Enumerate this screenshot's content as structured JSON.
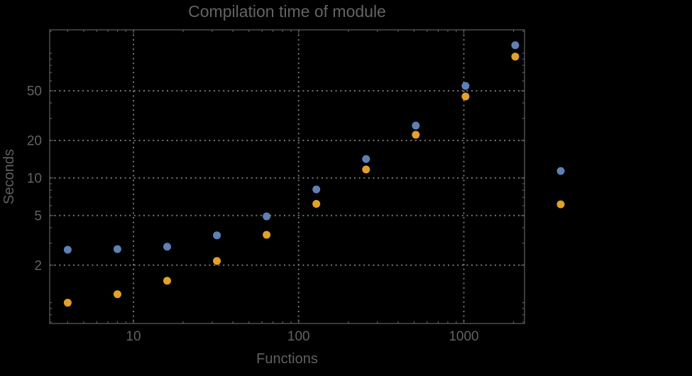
{
  "title": "Compilation time of module",
  "axes": {
    "x": {
      "label": "Functions"
    },
    "y": {
      "label": "Seconds"
    }
  },
  "chart_data": {
    "type": "scatter",
    "title": "Compilation time of module",
    "xlabel": "Functions",
    "ylabel": "Seconds",
    "xscale": "log",
    "yscale": "log",
    "xlim": [
      3.1,
      2310
    ],
    "ylim": [
      0.68,
      154
    ],
    "grid": "dotted gray lines at labeled major ticks, frame on all four sides with inward ticks",
    "legend_position": "right-outside, markers only (no visible label text)",
    "x": [
      4,
      8,
      16,
      32,
      64,
      128,
      256,
      512,
      1024,
      2048
    ],
    "series": [
      {
        "name": "blue-series",
        "color": "#5e81b5",
        "values": [
          2.66,
          2.69,
          2.81,
          3.47,
          4.92,
          8.1,
          14.2,
          26.3,
          54.7,
          116
        ]
      },
      {
        "name": "orange-series",
        "color": "#e3a02a",
        "values": [
          1.0,
          1.17,
          1.5,
          2.16,
          3.5,
          6.2,
          11.7,
          22.2,
          45,
          94
        ]
      }
    ],
    "x_major_ticks": [
      {
        "value": 10,
        "label": "10"
      },
      {
        "value": 100,
        "label": "100"
      },
      {
        "value": 1000,
        "label": "1000"
      }
    ],
    "y_major_ticks": [
      {
        "value": 2,
        "label": "2"
      },
      {
        "value": 5,
        "label": "5"
      },
      {
        "value": 10,
        "label": "10"
      },
      {
        "value": 20,
        "label": "20"
      },
      {
        "value": 50,
        "label": "50"
      }
    ],
    "x_minor_ticks": [
      4,
      5,
      6,
      7,
      8,
      9,
      20,
      30,
      40,
      50,
      60,
      70,
      80,
      90,
      200,
      300,
      400,
      500,
      600,
      700,
      800,
      900,
      2000
    ],
    "y_minor_ticks": [
      0.7,
      0.8,
      0.9,
      1,
      3,
      4,
      6,
      7,
      8,
      9,
      30,
      40,
      60,
      70,
      80,
      90,
      100,
      150
    ]
  },
  "colors": {
    "background": "#000000",
    "text": "#626262",
    "title_text": "#646464",
    "frame": "#5a5a5a",
    "gridline": "#757575",
    "series_blue": "#5e81b5",
    "series_orange": "#e3a02a"
  }
}
